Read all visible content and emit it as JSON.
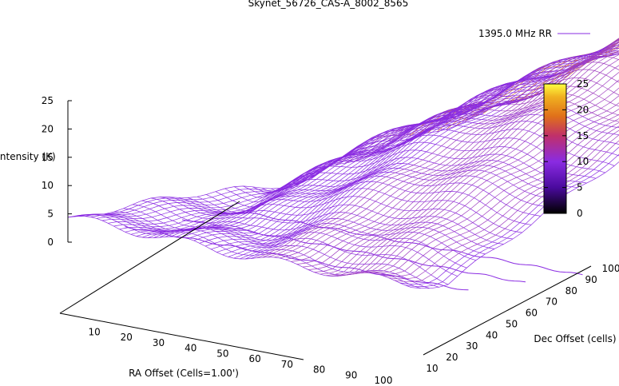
{
  "chart_data": {
    "type": "surface",
    "title": "Skynet_56726_CAS-A_8002_8565",
    "legend": {
      "placement": "top-right",
      "entries": [
        "1395.0 MHz RR"
      ]
    },
    "xlabel": "RA Offset (Cells=1.00')",
    "ylabel": "Dec Offset (cells)",
    "zlabel": "Intensity (K)",
    "xlim": [
      1,
      100
    ],
    "ylim": [
      1,
      100
    ],
    "zlim": [
      0,
      25
    ],
    "x_ticks": [
      10,
      20,
      30,
      40,
      50,
      60,
      70,
      80,
      90,
      100
    ],
    "y_ticks": [
      10,
      20,
      30,
      40,
      50,
      60,
      70,
      80,
      90,
      100
    ],
    "z_ticks": [
      0,
      5,
      10,
      15,
      20,
      25
    ],
    "colorbar": {
      "range": [
        0,
        25
      ],
      "ticks": [
        0,
        5,
        10,
        15,
        20,
        25
      ],
      "palette": [
        "#000000",
        "#4a0a9e",
        "#8a2be2",
        "#c0306a",
        "#e0701a",
        "#f0b020",
        "#ffff40"
      ]
    },
    "peak": {
      "x": 75,
      "y": 100,
      "z": 24
    },
    "grid": false,
    "line_color": "#8a2be2"
  }
}
